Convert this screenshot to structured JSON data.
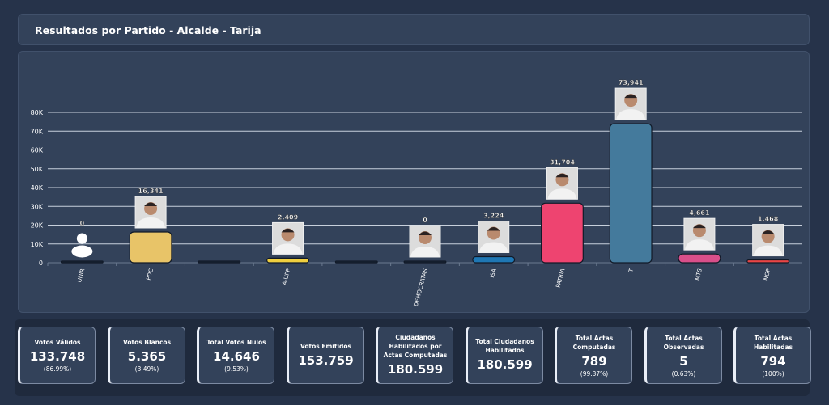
{
  "header": {
    "title": "Resultados por Partido - Alcalde - Tarija"
  },
  "chart_data": {
    "type": "bar",
    "categories": [
      "UNIR",
      "PDC",
      "",
      "A-UPP",
      "",
      "DEMOCRATAS",
      "ISA",
      "PATRIA",
      "T",
      "MTS",
      "NGP"
    ],
    "values": [
      0,
      16341,
      0,
      2409,
      0,
      0,
      3224,
      31704,
      73941,
      4661,
      1468
    ],
    "data_labels": [
      "0",
      "16,341",
      "",
      "2,409",
      "",
      "0",
      "3,224",
      "31,704",
      "73,941",
      "4,661",
      "1,468"
    ],
    "colors": [
      "#1a2436",
      "#e8c468",
      "#1a2436",
      "#f0cf3f",
      "#1a2436",
      "#1a2436",
      "#1f77b4",
      "#ee4470",
      "#447a9c",
      "#d94f8a",
      "#e84545"
    ],
    "photos": [
      "placeholder-avatar",
      "photo",
      "none",
      "photo",
      "none",
      "photo",
      "photo",
      "photo",
      "photo",
      "photo",
      "photo"
    ],
    "yticks": [
      "0",
      "10K",
      "20K",
      "30K",
      "40K",
      "50K",
      "60K",
      "70K",
      "80K"
    ],
    "ylim": [
      0,
      80000
    ],
    "grid": true
  },
  "stats": [
    {
      "label": "Votos Válidos",
      "value": "133.748",
      "pct": "(86.99%)"
    },
    {
      "label": "Votos Blancos",
      "value": "5.365",
      "pct": "(3.49%)"
    },
    {
      "label": "Total Votos Nulos",
      "value": "14.646",
      "pct": "(9.53%)"
    },
    {
      "label": "Votos Emitidos",
      "value": "153.759",
      "pct": ""
    },
    {
      "label": "Ciudadanos Habilitados por Actas Computadas",
      "value": "180.599",
      "pct": ""
    },
    {
      "label": "Total Ciudadanos Habilitados",
      "value": "180.599",
      "pct": ""
    },
    {
      "label": "Total Actas Computadas",
      "value": "789",
      "pct": "(99.37%)"
    },
    {
      "label": "Total Actas Observadas",
      "value": "5",
      "pct": "(0.63%)"
    },
    {
      "label": "Total Actas Habilitadas",
      "value": "794",
      "pct": "(100%)"
    }
  ]
}
